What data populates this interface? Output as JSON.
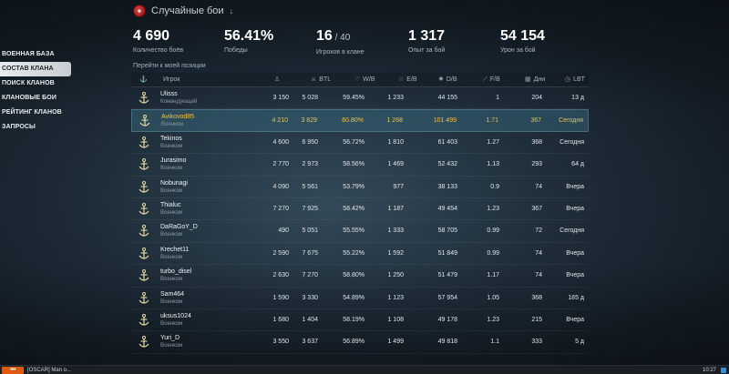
{
  "mode": {
    "title": "Случайные бои",
    "arrow": "↓"
  },
  "stats": [
    {
      "value": "4 690",
      "sub": "",
      "label": "Количество боёв"
    },
    {
      "value": "56.41%",
      "sub": "",
      "label": "Победы"
    },
    {
      "value": "16",
      "sub": " / 40",
      "label": "Игроков в клане"
    },
    {
      "value": "1 317",
      "sub": "",
      "label": "Опыт за бой"
    },
    {
      "value": "54 154",
      "sub": "",
      "label": "Урон за бой"
    }
  ],
  "sidebar": {
    "items": [
      {
        "label": "ВОЕННАЯ БАЗА"
      },
      {
        "label": "СОСТАВ КЛАНА"
      },
      {
        "label": "ПОИСК КЛАНОВ"
      },
      {
        "label": "КЛАНОВЫЕ БОИ"
      },
      {
        "label": "РЕЙТИНГ КЛАНОВ"
      },
      {
        "label": "ЗАПРОСЫ"
      }
    ]
  },
  "goto_link": "Перейти к моей позиции",
  "table": {
    "headers": {
      "player": "Игрок",
      "battles": "BTL",
      "wins": "W/B",
      "exp": "E/B",
      "damage": "D/B",
      "frags": "F/B",
      "days": "Дни",
      "lbt": "LBT"
    },
    "header_icons": {
      "anchor": "⚓",
      "rank": "♙",
      "battles": "⚔",
      "wins": "♡",
      "exp": "☆",
      "damage": "✸",
      "frags": "⟋",
      "days": "▦",
      "lbt": "◷"
    },
    "rows": [
      {
        "name": "Ulisss",
        "role": "Командующий",
        "rank": "3 150",
        "battles": "5 028",
        "wins": "59.45%",
        "exp": "1 233",
        "damage": "44 155",
        "frags": "1",
        "days": "204",
        "lbt": "13 д"
      },
      {
        "name": "Avikovod85",
        "role": "Военком",
        "rank": "4 210",
        "battles": "3 829",
        "wins": "60.80%",
        "exp": "1 268",
        "damage": "101 499",
        "frags": "1.71",
        "days": "367",
        "lbt": "Сегодня"
      },
      {
        "name": "Tekinos",
        "role": "Военком",
        "rank": "4 600",
        "battles": "6 950",
        "wins": "56.72%",
        "exp": "1 810",
        "damage": "61 403",
        "frags": "1.27",
        "days": "368",
        "lbt": "Сегодня"
      },
      {
        "name": "Jurasimo",
        "role": "Военком",
        "rank": "2 770",
        "battles": "2 973",
        "wins": "58.56%",
        "exp": "1 469",
        "damage": "52 432",
        "frags": "1.13",
        "days": "293",
        "lbt": "64 д"
      },
      {
        "name": "Nobunagi",
        "role": "Военком",
        "rank": "4 090",
        "battles": "5 561",
        "wins": "53.79%",
        "exp": "977",
        "damage": "38 133",
        "frags": "0.9",
        "days": "74",
        "lbt": "Вчера"
      },
      {
        "name": "Thialuc",
        "role": "Военком",
        "rank": "7 270",
        "battles": "7 925",
        "wins": "58.42%",
        "exp": "1 187",
        "damage": "49 454",
        "frags": "1.23",
        "days": "367",
        "lbt": "Вчера"
      },
      {
        "name": "DaRaGoY_D",
        "role": "Военком",
        "rank": "490",
        "battles": "5 051",
        "wins": "55.55%",
        "exp": "1 333",
        "damage": "58 705",
        "frags": "0.99",
        "days": "72",
        "lbt": "Сегодня"
      },
      {
        "name": "Krechet11",
        "role": "Военком",
        "rank": "2 590",
        "battles": "7 675",
        "wins": "55.22%",
        "exp": "1 592",
        "damage": "51 849",
        "frags": "0.99",
        "days": "74",
        "lbt": "Вчера"
      },
      {
        "name": "turbo_disel",
        "role": "Военком",
        "rank": "2 630",
        "battles": "7 270",
        "wins": "58.80%",
        "exp": "1 250",
        "damage": "51 479",
        "frags": "1.17",
        "days": "74",
        "lbt": "Вчера"
      },
      {
        "name": "Sam464",
        "role": "Военком",
        "rank": "1 590",
        "battles": "3 330",
        "wins": "54.89%",
        "exp": "1 123",
        "damage": "57 954",
        "frags": "1.05",
        "days": "368",
        "lbt": "185 д"
      },
      {
        "name": "uksus1024",
        "role": "Военком",
        "rank": "1 680",
        "battles": "1 404",
        "wins": "58.19%",
        "exp": "1 108",
        "damage": "49 178",
        "frags": "1.23",
        "days": "215",
        "lbt": "Вчера"
      },
      {
        "name": "Yuri_D",
        "role": "Военком",
        "rank": "3 550",
        "battles": "3 637",
        "wins": "56.89%",
        "exp": "1 499",
        "damage": "49 818",
        "frags": "1.1",
        "days": "333",
        "lbt": "5 д"
      }
    ]
  },
  "taskbar": {
    "start_label": "•••",
    "task_label": "[OSCAR] Man o...",
    "time": "10:27"
  },
  "colors": {
    "highlight_text": "#f0c040",
    "accent_orange": "#e05a10"
  }
}
